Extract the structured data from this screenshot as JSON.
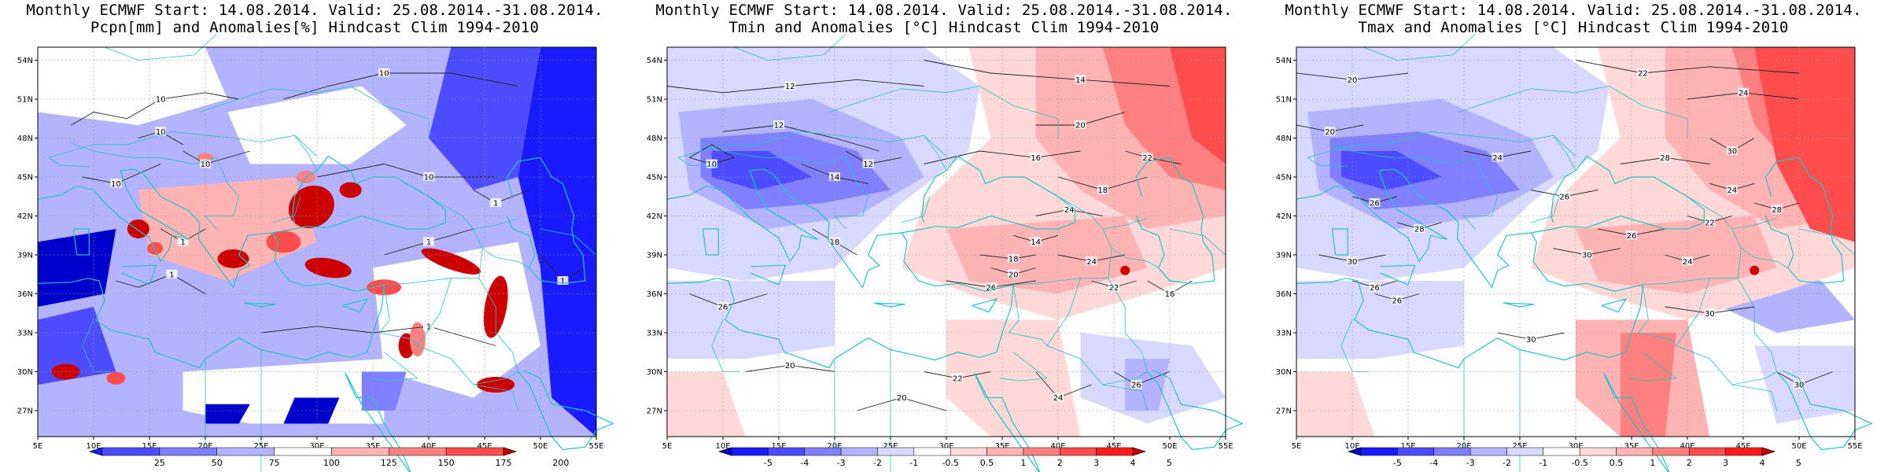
{
  "panels": [
    {
      "title_line1": "Monthly ECMWF Start: 14.08.2014. Valid: 25.08.2014.-31.08.2014.",
      "title_line2": "Pcpn[mm] and Anomalies[%] Hindcast Clim 1994-2010",
      "variable": "precipitation",
      "colorbar": {
        "labels": [
          "25",
          "50",
          "75",
          "100",
          "125",
          "150",
          "175",
          "200"
        ],
        "colors": [
          "#1a1aff",
          "#4d4dff",
          "#8080ff",
          "#b3b3ff",
          "#ffffff",
          "#ffb3b3",
          "#ff8080",
          "#ff4d4d",
          "#cc0000"
        ]
      },
      "contour_labels": [
        "10",
        "10",
        "10",
        "10",
        "10",
        "10",
        "1",
        "1",
        "1",
        "1",
        "1",
        "1"
      ]
    },
    {
      "title_line1": "Monthly ECMWF Start: 14.08.2014. Valid: 25.08.2014.-31.08.2014.",
      "title_line2": "Tmin and Anomalies [°C] Hindcast Clim 1994-2010",
      "variable": "tmin",
      "colorbar": {
        "labels": [
          "-5",
          "-4",
          "-3",
          "-2",
          "-1",
          "-0.5",
          "0.5",
          "1",
          "2",
          "3",
          "4",
          "5"
        ],
        "colors": [
          "#0000cc",
          "#1a1aff",
          "#4d4dff",
          "#8080ff",
          "#b3b3ff",
          "#d9d9ff",
          "#ffffff",
          "#ffd9d9",
          "#ffb3b3",
          "#ff8080",
          "#ff4d4d",
          "#ff1a1a",
          "#cc0000"
        ]
      },
      "contour_labels": [
        "12",
        "12",
        "14",
        "10",
        "14",
        "12",
        "16",
        "18",
        "18",
        "20",
        "22",
        "24",
        "24",
        "26",
        "26",
        "20",
        "20",
        "22",
        "24",
        "26",
        "16",
        "14",
        "18",
        "20",
        "22"
      ]
    },
    {
      "title_line1": "Monthly ECMWF Start: 14.08.2014. Valid: 25.08.2014.-31.08.2014.",
      "title_line2": "Tmax and Anomalies [°C] Hindcast Clim 1994-2010",
      "variable": "tmax",
      "colorbar": {
        "labels": [
          "-5",
          "-4",
          "-3",
          "-2",
          "-1",
          "-0.5",
          "0.5",
          "1",
          "2",
          "3",
          "4",
          "5"
        ],
        "colors": [
          "#0000cc",
          "#1a1aff",
          "#4d4dff",
          "#8080ff",
          "#b3b3ff",
          "#d9d9ff",
          "#ffffff",
          "#ffd9d9",
          "#ffb3b3",
          "#ff8080",
          "#ff4d4d",
          "#ff1a1a",
          "#cc0000"
        ]
      },
      "contour_labels": [
        "22",
        "20",
        "24",
        "20",
        "24",
        "26",
        "28",
        "30",
        "24",
        "26",
        "28",
        "30",
        "26",
        "24",
        "22",
        "30",
        "26",
        "28",
        "30",
        "26",
        "30",
        "30"
      ]
    }
  ],
  "lat_ticks": [
    "54N",
    "51N",
    "48N",
    "45N",
    "42N",
    "39N",
    "36N",
    "33N",
    "30N",
    "27N"
  ],
  "lon_ticks": [
    "5E",
    "10E",
    "15E",
    "20E",
    "25E",
    "30E",
    "35E",
    "40E",
    "45E",
    "50E",
    "55E"
  ],
  "colors": {
    "coast": "#22c4c4",
    "contour": "#222222",
    "grid": "#9a9a9a"
  }
}
